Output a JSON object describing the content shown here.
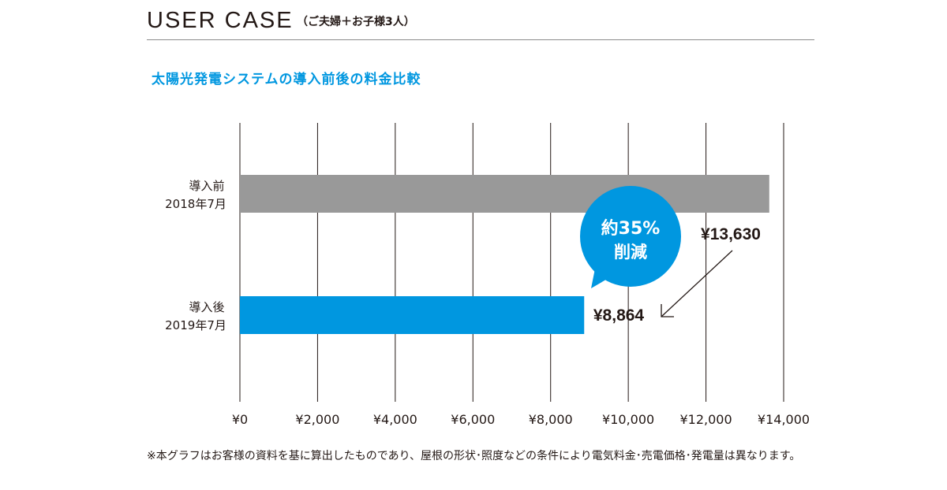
{
  "header": {
    "title": "USER CASE",
    "subtitle": "（ご夫婦＋お子様3人）"
  },
  "chart_data": {
    "type": "bar",
    "orientation": "horizontal",
    "title": "太陽光発電システムの導入前後の料金比較",
    "categories": [
      {
        "line1": "導入前",
        "line2": "2018年7月"
      },
      {
        "line1": "導入後",
        "line2": "2019年7月"
      }
    ],
    "values": [
      13630,
      8864
    ],
    "value_labels": [
      "¥13,630",
      "¥8,864"
    ],
    "colors": [
      "#999999",
      "#0097e0"
    ],
    "xlim": [
      0,
      14000
    ],
    "xticks": [
      0,
      2000,
      4000,
      6000,
      8000,
      10000,
      12000,
      14000
    ],
    "xtick_labels": [
      "¥0",
      "¥2,000",
      "¥4,000",
      "¥6,000",
      "¥8,000",
      "¥10,000",
      "¥12,000",
      "¥14,000"
    ],
    "grid": true,
    "annotation": {
      "line1": "約35%",
      "line2": "削減",
      "color": "#0097e0"
    }
  },
  "footnote": "※本グラフはお客様の資料を基に算出したものであり、屋根の形状･照度などの条件により電気料金･売電価格･発電量は異なります。"
}
